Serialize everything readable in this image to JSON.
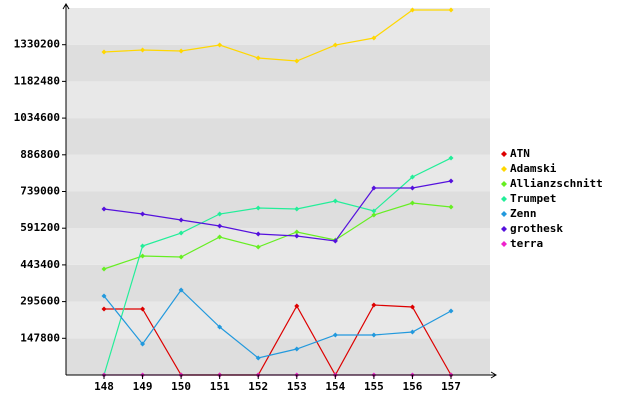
{
  "chart_data": {
    "type": "line",
    "categories": [
      "148",
      "149",
      "150",
      "151",
      "152",
      "153",
      "154",
      "155",
      "156",
      "157"
    ],
    "series": [
      {
        "name": "ATN",
        "color": "#dd0000",
        "values": [
          265800,
          265800,
          0,
          0,
          0,
          277900,
          0,
          281900,
          273800,
          0
        ]
      },
      {
        "name": "Adamski",
        "color": "#ffd700",
        "values": [
          1300700,
          1308800,
          1304800,
          1328900,
          1276600,
          1264500,
          1328900,
          1357100,
          1469900,
          1469900
        ]
      },
      {
        "name": "Allianzschnitt",
        "color": "#66ee22",
        "values": [
          426900,
          479200,
          475200,
          555700,
          515500,
          575900,
          543600,
          644300,
          692700,
          676600
        ]
      },
      {
        "name": "Trumpet",
        "color": "#22ee99",
        "values": [
          0,
          519500,
          571800,
          648300,
          672500,
          668500,
          700700,
          660400,
          797300,
          873800
        ]
      },
      {
        "name": "Zenn",
        "color": "#2299dd",
        "values": [
          318100,
          124800,
          342300,
          193300,
          68500,
          104700,
          161100,
          161100,
          173200,
          257700
        ]
      },
      {
        "name": "grothesk",
        "color": "#5511dd",
        "values": [
          668500,
          648300,
          624200,
          600000,
          567800,
          559700,
          539600,
          753000,
          753000,
          781200
        ]
      },
      {
        "name": "terra",
        "color": "#ee22cc",
        "values": [
          0,
          0,
          0,
          0,
          0,
          0,
          0,
          0,
          0,
          0
        ]
      }
    ],
    "ylim": [
      0,
      1478000
    ],
    "yticks": [
      147800,
      295600,
      443400,
      591200,
      739000,
      886800,
      1034600,
      1182480,
      1330200
    ],
    "legend": "right"
  }
}
